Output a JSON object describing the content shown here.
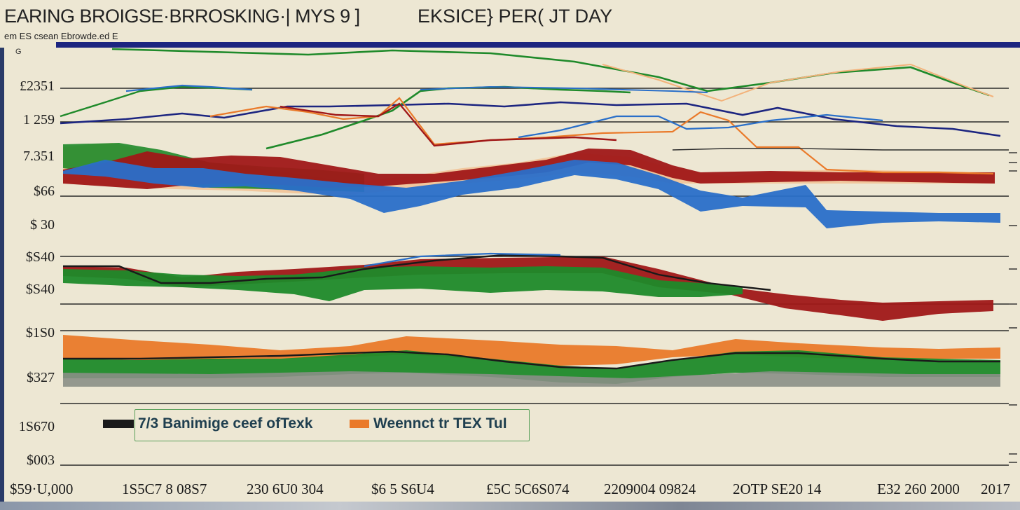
{
  "header": {
    "title": "EARING BROIGSE·BRROSKING·| MYS 9 ]",
    "title_right": "EKSICE} PER( JT DAY",
    "subtitle": "em ES csean Ebrowde.ed E",
    "corner_mark": "G"
  },
  "colors": {
    "navy": "#1c2580",
    "green": "#1f8a2a",
    "blue": "#2a6fc9",
    "red": "#a01818",
    "orange": "#ea7a2a",
    "light_orange": "#f3b27a",
    "dark": "#1a1a1a",
    "bg": "#ede7d3"
  },
  "axes": {
    "y_ticks": [
      "£2351",
      "1 259",
      "7.351",
      "$66",
      "$ 30",
      "$S40",
      "$S40",
      "$1S0",
      "$327",
      "1S670",
      "$003"
    ],
    "x_ticks": [
      "$59·U,000",
      "1S5C7 8 08S7",
      "230 6U0 304",
      "$6 5 S6U4",
      "£5C 5C6S074",
      "2209004 09824",
      "2OTP SE20 14",
      "E32 260 2000",
      "2017"
    ]
  },
  "legend": {
    "item1": "7/3 Banimige ceef ofTexk",
    "item2": "Weennct tr TEX TuI",
    "item1_color": "#1a1a1a",
    "item2_color": "#ea7a2a"
  },
  "chart_data": {
    "type": "area",
    "title": "EARING BROIGSE·BRROSKING·| MYS 9 ]",
    "ylabel": "",
    "xlabel": "",
    "categories": [
      "$59·U,000",
      "1S5C7 8 08S7",
      "230 6U0 304",
      "$6 5 S6U4",
      "£5C 5C6S074",
      "2209004 09824",
      "2OTP SE20 14",
      "E32 260 2000",
      "2017"
    ],
    "y_tick_labels": [
      "£2351",
      "1 259",
      "7.351",
      "$66",
      "$ 30",
      "$S40",
      "$S40",
      "$1S0",
      "$327",
      "1S670",
      "$003"
    ],
    "grid": true,
    "legend_position": "bottom-left",
    "series": [
      {
        "name": "7/3 Banimige ceef ofTexk",
        "values": [
          7,
          6,
          5,
          6,
          7,
          8,
          7,
          6,
          5
        ]
      },
      {
        "name": "Weennct tr TEX TuI",
        "values": [
          9,
          9,
          10,
          10,
          9,
          10,
          10,
          9,
          9
        ]
      }
    ]
  }
}
